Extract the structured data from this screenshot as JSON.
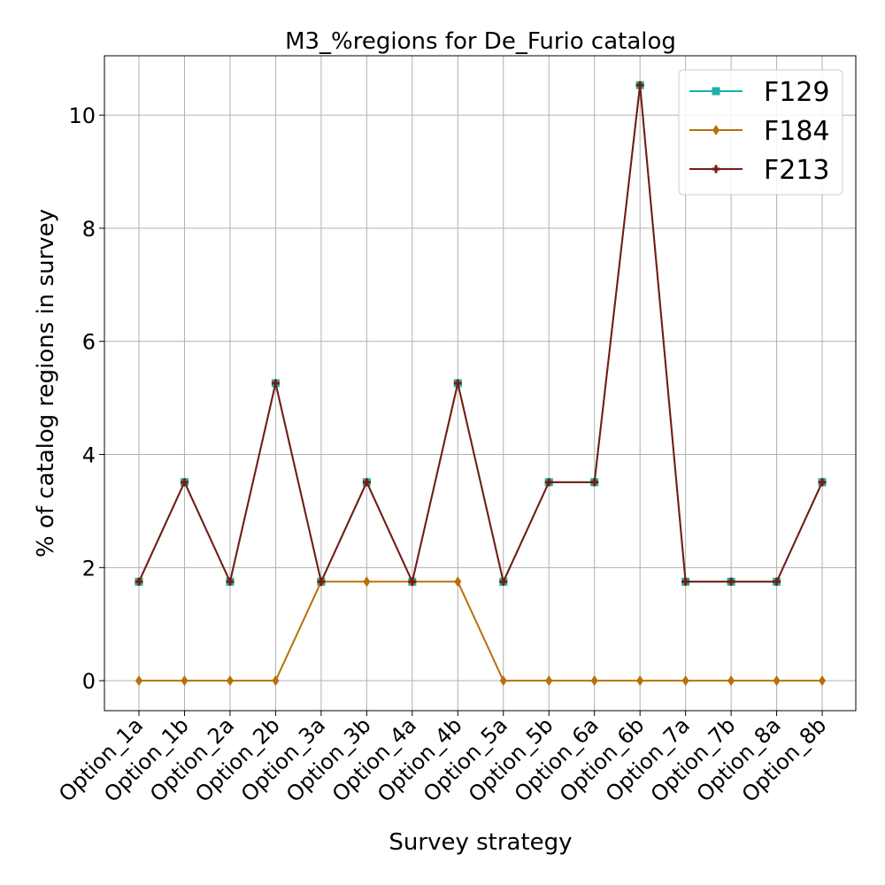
{
  "chart_data": {
    "type": "line",
    "title": "M3_%regions for De_Furio catalog",
    "xlabel": "Survey strategy",
    "ylabel": "% of catalog regions in survey",
    "categories": [
      "Option_1a",
      "Option_1b",
      "Option_2a",
      "Option_2b",
      "Option_3a",
      "Option_3b",
      "Option_4a",
      "Option_4b",
      "Option_5a",
      "Option_5b",
      "Option_6a",
      "Option_6b",
      "Option_7a",
      "Option_7b",
      "Option_8a",
      "Option_8b"
    ],
    "ylim": [
      -0.53,
      11.05
    ],
    "yticks": [
      0,
      2,
      4,
      6,
      8,
      10
    ],
    "grid": true,
    "legend_position": "top-right",
    "series": [
      {
        "name": "F129",
        "color": "#17b3a8",
        "marker": "square",
        "values": [
          1.75,
          3.51,
          1.75,
          5.26,
          1.75,
          3.51,
          1.75,
          5.26,
          1.75,
          3.51,
          3.51,
          10.53,
          1.75,
          1.75,
          1.75,
          3.51
        ]
      },
      {
        "name": "F184",
        "color": "#b8700a",
        "marker": "diamond",
        "values": [
          0,
          0,
          0,
          0,
          1.75,
          1.75,
          1.75,
          1.75,
          0,
          0,
          0,
          0,
          0,
          0,
          0,
          0
        ]
      },
      {
        "name": "F213",
        "color": "#7a1a10",
        "marker": "plus",
        "values": [
          1.75,
          3.51,
          1.75,
          5.26,
          1.75,
          3.51,
          1.75,
          5.26,
          1.75,
          3.51,
          3.51,
          10.53,
          1.75,
          1.75,
          1.75,
          3.51
        ]
      }
    ]
  }
}
